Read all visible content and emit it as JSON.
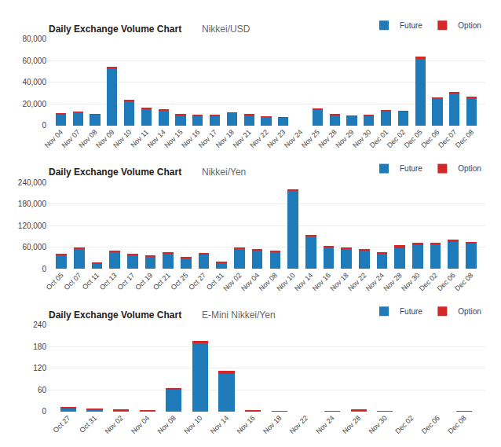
{
  "chart_data": [
    {
      "type": "bar",
      "title": "Daily Exchange Volume Chart",
      "subtitle": "Nikkei/USD",
      "categories": [
        "Nov 04",
        "Nov 07",
        "Nov 08",
        "Nov 09",
        "Nov 10",
        "Nov 11",
        "Nov 14",
        "Nov 15",
        "Nov 16",
        "Nov 17",
        "Nov 18",
        "Nov 21",
        "Nov 22",
        "Nov 23",
        "Nov 24",
        "Nov 25",
        "Nov 28",
        "Nov 29",
        "Nov 30",
        "Dec 01",
        "Dec 02",
        "Dec 05",
        "Dec 06",
        "Dec 07",
        "Dec 08"
      ],
      "series": [
        {
          "name": "Future",
          "color": "#1e7ab8",
          "values": [
            11000,
            12500,
            10500,
            53000,
            23000,
            16000,
            14500,
            10000,
            9500,
            9500,
            12000,
            10000,
            8500,
            7500,
            0,
            15000,
            10000,
            9000,
            9500,
            14000,
            13500,
            62000,
            25000,
            29500,
            26000
          ]
        },
        {
          "name": "Option",
          "color": "#d62728",
          "values": [
            500,
            500,
            300,
            1500,
            800,
            500,
            500,
            300,
            300,
            300,
            400,
            300,
            300,
            300,
            0,
            400,
            300,
            300,
            300,
            400,
            400,
            1500,
            600,
            2000,
            1000
          ]
        }
      ],
      "stacked": true,
      "ylim": [
        0,
        80000
      ],
      "yticks": [
        0,
        {
          "value": 20000,
          "label": "20,000"
        },
        {
          "value": 40000,
          "label": "40,000"
        },
        {
          "value": 60000,
          "label": "60,000"
        },
        {
          "value": 80000,
          "label": "80,000"
        }
      ],
      "grid": true,
      "legend": "upper right"
    },
    {
      "type": "bar",
      "title": "Daily Exchange Volume Chart",
      "subtitle": "Nikkei/Yen",
      "categories": [
        "Oct 05",
        "Oct 07",
        "Oct 11",
        "Oct 13",
        "Oct 17",
        "Oct 19",
        "Oct 21",
        "Oct 25",
        "Oct 27",
        "Oct 31",
        "Nov 02",
        "Nov 04",
        "Nov 08",
        "Nov 10",
        "Nov 14",
        "Nov 16",
        "Nov 18",
        "Nov 22",
        "Nov 24",
        "Nov 28",
        "Nov 30",
        "Dec 02",
        "Dec 06",
        "Dec 08"
      ],
      "series": [
        {
          "name": "Future",
          "color": "#1e7ab8",
          "values": [
            38000,
            55000,
            15000,
            48000,
            38000,
            35000,
            42000,
            30000,
            40000,
            15000,
            55000,
            52000,
            48000,
            218000,
            90000,
            60000,
            55000,
            52000,
            42000,
            58000,
            65000,
            68000,
            75000,
            72000
          ]
        },
        {
          "name": "Option",
          "color": "#d62728",
          "values": [
            3000,
            3000,
            3000,
            3000,
            3000,
            3000,
            5000,
            3000,
            3000,
            5000,
            4000,
            3000,
            3000,
            3000,
            3000,
            3000,
            3000,
            3000,
            3000,
            7000,
            7000,
            3000,
            7000,
            3000
          ]
        }
      ],
      "stacked": true,
      "ylim": [
        0,
        240000
      ],
      "yticks": [
        0,
        {
          "value": 60000,
          "label": "60,000"
        },
        {
          "value": 120000,
          "label": "120,000"
        },
        {
          "value": 180000,
          "label": "180,000"
        },
        {
          "value": 240000,
          "label": "240,000"
        }
      ],
      "grid": true,
      "legend": "upper right"
    },
    {
      "type": "bar",
      "title": "Daily Exchange Volume Chart",
      "subtitle": "E-Mini Nikkei/Yen",
      "categories": [
        "Oct 27",
        "Oct 31",
        "Nov 02",
        "Nov 04",
        "Nov 08",
        "Nov 10",
        "Nov 14",
        "Nov 16",
        "Nov 18",
        "Nov 22",
        "Nov 24",
        "Nov 28",
        "Nov 30",
        "Dec 02",
        "Dec 06",
        "Dec 08"
      ],
      "series": [
        {
          "name": "Future",
          "color": "#1e7ab8",
          "values": [
            8,
            5,
            3,
            3,
            60,
            190,
            105,
            2,
            0,
            0,
            0,
            4,
            1,
            0,
            0,
            0
          ]
        },
        {
          "name": "Option",
          "color": "#d62728",
          "values": [
            5,
            2,
            2,
            1,
            5,
            5,
            8,
            1,
            1,
            0,
            1,
            2,
            1,
            0,
            0,
            2
          ]
        }
      ],
      "stacked": true,
      "ylim": [
        0,
        240
      ],
      "yticks": [
        0,
        60,
        120,
        180,
        240
      ],
      "grid": true,
      "legend": "upper right"
    }
  ]
}
